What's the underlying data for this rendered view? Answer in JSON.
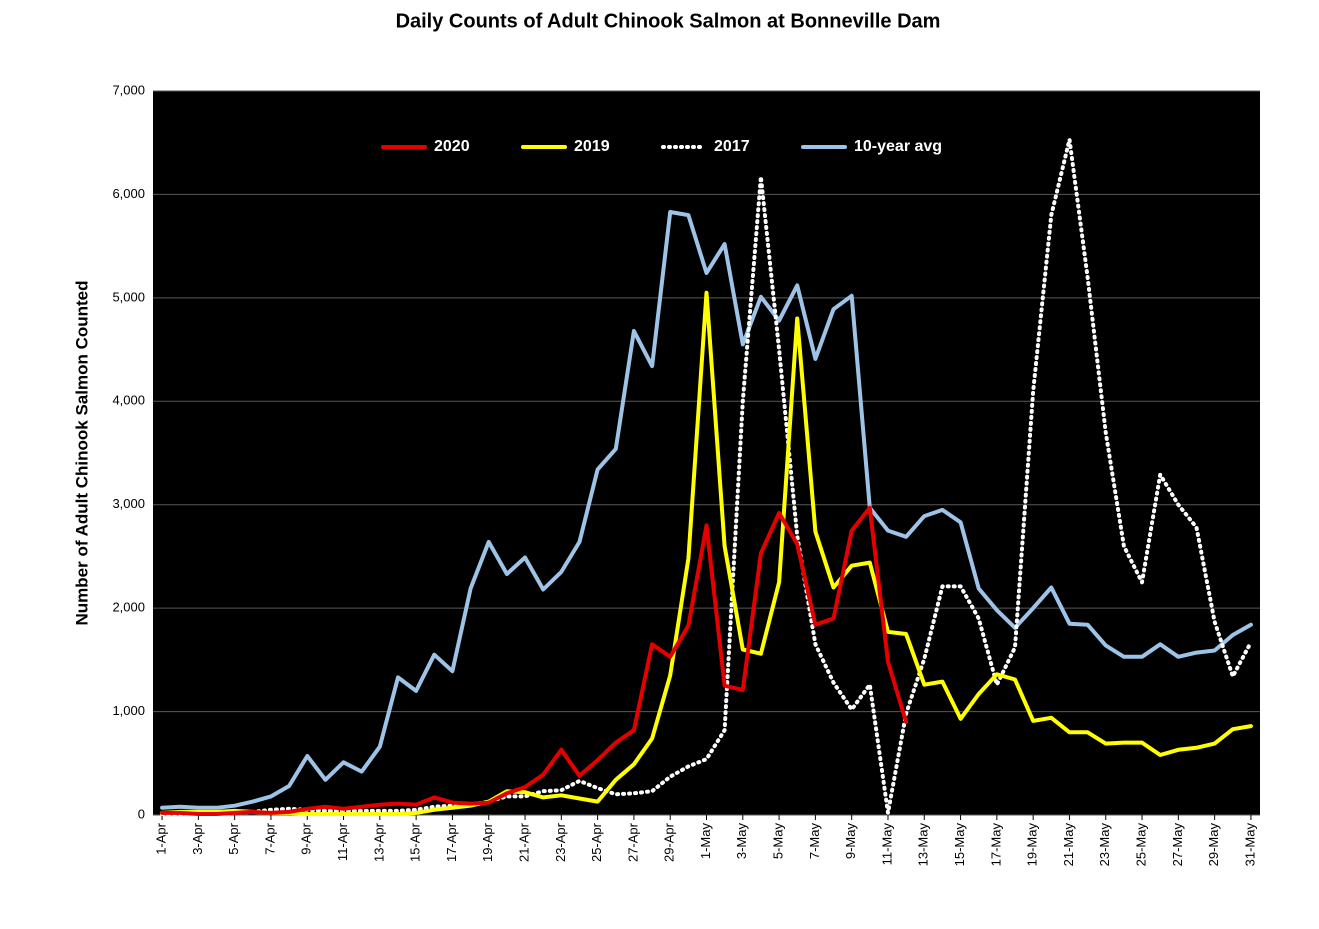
{
  "chart_data": {
    "type": "line",
    "title": "Daily Counts of Adult Chinook Salmon at Bonneville Dam",
    "y_label": "Number of Adult Chinook Salmon Counted",
    "categories": [
      "1-Apr",
      null,
      "3-Apr",
      null,
      "5-Apr",
      null,
      "7-Apr",
      null,
      "9-Apr",
      null,
      "11-Apr",
      null,
      "13-Apr",
      null,
      "15-Apr",
      null,
      "17-Apr",
      null,
      "19-Apr",
      null,
      "21-Apr",
      null,
      "23-Apr",
      null,
      "25-Apr",
      null,
      "27-Apr",
      null,
      "29-Apr",
      null,
      "1-May",
      null,
      "3-May",
      null,
      "5-May",
      null,
      "7-May",
      null,
      "9-May",
      null,
      "11-May",
      null,
      "13-May",
      null,
      "15-May",
      null,
      "17-May",
      null,
      "19-May",
      null,
      "21-May",
      null,
      "23-May",
      null,
      "25-May",
      null,
      "27-May",
      null,
      "29-May",
      null,
      "31-May"
    ],
    "series": [
      {
        "name": "2020",
        "color": "#e50000",
        "dash": "solid",
        "values": [
          20,
          20,
          10,
          10,
          20,
          30,
          20,
          30,
          60,
          80,
          60,
          80,
          100,
          110,
          100,
          170,
          120,
          110,
          120,
          210,
          270,
          390,
          630,
          380,
          530,
          700,
          820,
          1650,
          1530,
          1830,
          2800,
          1250,
          1210,
          2530,
          2920,
          2620,
          1840,
          1900,
          2750,
          2970,
          1480,
          900,
          null,
          null,
          null,
          null,
          null,
          null,
          null,
          null,
          null,
          null,
          null,
          null,
          null,
          null,
          null,
          null,
          null,
          null,
          null
        ]
      },
      {
        "name": "2019",
        "color": "#ffff00",
        "dash": "solid",
        "values": [
          20,
          30,
          30,
          30,
          40,
          30,
          20,
          20,
          10,
          10,
          10,
          10,
          10,
          10,
          20,
          50,
          70,
          90,
          130,
          230,
          220,
          170,
          190,
          160,
          130,
          340,
          490,
          740,
          1350,
          2480,
          5050,
          2600,
          1600,
          1560,
          2250,
          4800,
          2740,
          2200,
          2410,
          2440,
          1770,
          1750,
          1260,
          1290,
          930,
          1170,
          1360,
          1310,
          910,
          940,
          800,
          800,
          690,
          700,
          700,
          580,
          630,
          650,
          690,
          830,
          860
        ]
      },
      {
        "name": "2017",
        "color": "#ffffff",
        "dash": "dotted",
        "values": [
          10,
          10,
          10,
          10,
          20,
          30,
          50,
          60,
          50,
          40,
          40,
          40,
          40,
          40,
          50,
          80,
          90,
          100,
          130,
          180,
          180,
          230,
          240,
          330,
          260,
          200,
          210,
          230,
          370,
          470,
          540,
          820,
          4000,
          6170,
          4500,
          2700,
          1650,
          1280,
          1020,
          1260,
          20,
          980,
          1510,
          2210,
          2210,
          1900,
          1260,
          1620,
          4100,
          5800,
          6530,
          5200,
          3700,
          2600,
          2250,
          3290,
          3000,
          2780,
          1870,
          1340,
          1670
        ]
      },
      {
        "name": "10-year avg",
        "color": "#9dc3e6",
        "dash": "solid",
        "values": [
          70,
          80,
          70,
          70,
          90,
          130,
          180,
          280,
          570,
          340,
          510,
          420,
          660,
          1330,
          1200,
          1550,
          1390,
          2190,
          2640,
          2330,
          2490,
          2180,
          2350,
          2640,
          3340,
          3540,
          4680,
          4340,
          5830,
          5800,
          5240,
          5520,
          4550,
          5010,
          4780,
          5120,
          4410,
          4890,
          5020,
          2970,
          2750,
          2690,
          2890,
          2950,
          2830,
          2190,
          1980,
          1810,
          2000,
          2200,
          1850,
          1840,
          1640,
          1530,
          1530,
          1650,
          1530,
          1570,
          1590,
          1740,
          1840
        ]
      }
    ],
    "ylim": [
      0,
      7000
    ],
    "yticks": [
      0,
      {
        "value": 1000,
        "label": "1,000"
      },
      {
        "value": 2000,
        "label": "2,000"
      },
      {
        "value": 3000,
        "label": "3,000"
      },
      {
        "value": 4000,
        "label": "4,000"
      },
      {
        "value": 5000,
        "label": "5,000"
      },
      {
        "value": 6000,
        "label": "6,000"
      },
      {
        "value": 7000,
        "label": "7,000"
      }
    ],
    "grid": true,
    "legend": "top"
  }
}
